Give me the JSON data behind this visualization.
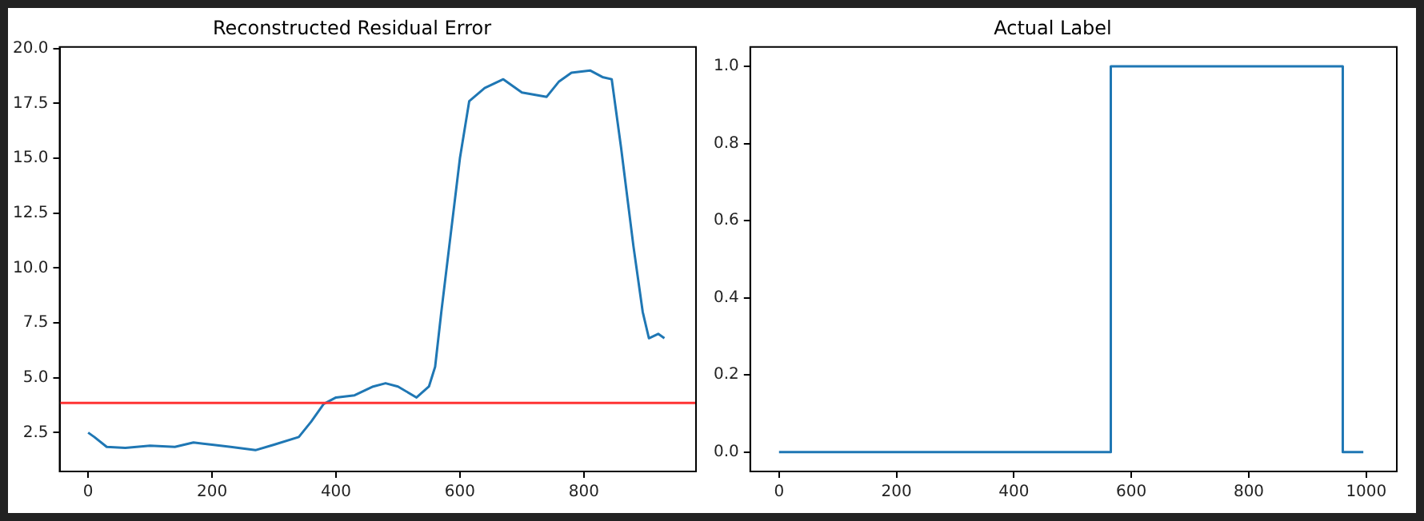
{
  "chart_data": [
    {
      "type": "line",
      "title": "Reconstructed Residual Error",
      "xlim": [
        -46,
        981
      ],
      "ylim": [
        0.73,
        20.07
      ],
      "xticks": [
        0,
        200,
        400,
        600,
        800
      ],
      "yticks": [
        {
          "value": 2.5,
          "label": "2.5"
        },
        {
          "value": 5,
          "label": "5.0"
        },
        {
          "value": 7.5,
          "label": "7.5"
        },
        {
          "value": 10,
          "label": "10.0"
        },
        {
          "value": 12.5,
          "label": "12.5"
        },
        {
          "value": 15,
          "label": "15.0"
        },
        {
          "value": 17.5,
          "label": "17.5"
        },
        {
          "value": 20,
          "label": "20.0"
        }
      ],
      "grid": false,
      "legend": false,
      "series": [
        {
          "color": "#1f77b4",
          "x": [
            0,
            10,
            30,
            60,
            100,
            140,
            170,
            200,
            230,
            270,
            300,
            340,
            360,
            380,
            400,
            430,
            460,
            480,
            500,
            530,
            550,
            560,
            570,
            585,
            600,
            615,
            640,
            670,
            700,
            720,
            740,
            760,
            780,
            810,
            830,
            845,
            860,
            880,
            895,
            905,
            920,
            930
          ],
          "values": [
            2.5,
            2.3,
            1.85,
            1.8,
            1.9,
            1.85,
            2.05,
            1.95,
            1.85,
            1.7,
            1.95,
            2.3,
            3.0,
            3.8,
            4.1,
            4.2,
            4.6,
            4.75,
            4.6,
            4.1,
            4.6,
            5.5,
            8,
            11.5,
            15,
            17.6,
            18.2,
            18.6,
            18.0,
            17.9,
            17.8,
            18.5,
            18.9,
            19.0,
            18.7,
            18.6,
            15.5,
            11,
            8,
            6.8,
            7.0,
            6.8
          ]
        }
      ],
      "ref_lines": [
        {
          "axis": "y",
          "value": 3.85,
          "color": "#ff3333"
        }
      ]
    },
    {
      "type": "step",
      "title": "Actual Label",
      "xlim": [
        -49,
        1052
      ],
      "ylim": [
        -0.05,
        1.05
      ],
      "xticks": [
        0,
        200,
        400,
        600,
        800,
        1000
      ],
      "yticks": [
        {
          "value": 0,
          "label": "0.0"
        },
        {
          "value": 0.2,
          "label": "0.2"
        },
        {
          "value": 0.4,
          "label": "0.4"
        },
        {
          "value": 0.6,
          "label": "0.6"
        },
        {
          "value": 0.8,
          "label": "0.8"
        },
        {
          "value": 1,
          "label": "1.0"
        }
      ],
      "grid": false,
      "legend": false,
      "series": [
        {
          "color": "#1f77b4",
          "x": [
            0,
            565,
            960,
            995
          ],
          "values": [
            0,
            1,
            0,
            0
          ]
        }
      ]
    }
  ]
}
